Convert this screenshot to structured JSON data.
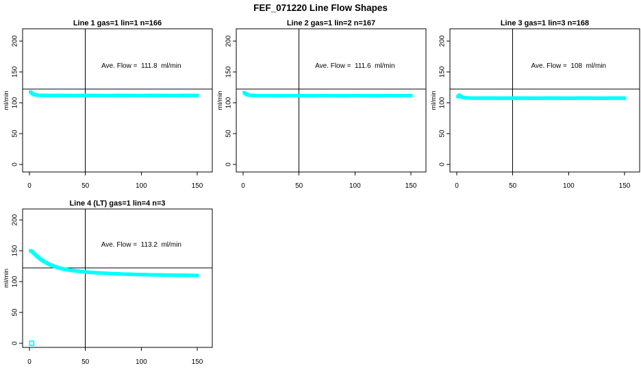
{
  "page": {
    "title": "FEF_071220  Line Flow Shapes",
    "background": "#ffffff"
  },
  "style": {
    "marker_color": "#00ffff",
    "axis_color": "#000000",
    "text_color": "#000000"
  },
  "chart_data": [
    {
      "type": "scatter",
      "title": "Line 1 gas=1 lin=1 n=166",
      "annotation": "Ave. Flow =  111.8  ml/min",
      "ave_flow_ml_min": 111.8,
      "n": 166,
      "xlabel": "",
      "ylabel": "ml/min",
      "xlim": [
        0,
        150
      ],
      "ylim": [
        0,
        200
      ],
      "x_ticks": [
        0,
        50,
        100,
        150
      ],
      "y_ticks": [
        0,
        50,
        100,
        150,
        200
      ],
      "grid": false,
      "vline_x": 50,
      "hline_y": 122,
      "annotation_pos": {
        "x": 100,
        "y": 160
      },
      "profile_points": [
        [
          1,
          117.5
        ],
        [
          2,
          116
        ],
        [
          3,
          114.6
        ],
        [
          4,
          113.6
        ],
        [
          5,
          113
        ],
        [
          6,
          112.6
        ],
        [
          8,
          112.2
        ],
        [
          10,
          112
        ],
        [
          14,
          111.9
        ],
        [
          20,
          111.8
        ],
        [
          30,
          111.9
        ],
        [
          40,
          111.7
        ],
        [
          50,
          111.9
        ],
        [
          60,
          111.8
        ],
        [
          70,
          111.7
        ],
        [
          80,
          111.9
        ],
        [
          90,
          111.8
        ],
        [
          100,
          111.7
        ],
        [
          110,
          111.9
        ],
        [
          120,
          111.8
        ],
        [
          130,
          111.7
        ],
        [
          140,
          111.9
        ],
        [
          150,
          111.8
        ]
      ],
      "extra_points": []
    },
    {
      "type": "scatter",
      "title": "Line 2 gas=1 lin=2 n=167",
      "annotation": "Ave. Flow =  111.6  ml/min",
      "ave_flow_ml_min": 111.6,
      "n": 167,
      "xlabel": "",
      "ylabel": "ml/min",
      "xlim": [
        0,
        150
      ],
      "ylim": [
        0,
        200
      ],
      "x_ticks": [
        0,
        50,
        100,
        150
      ],
      "y_ticks": [
        0,
        50,
        100,
        150,
        200
      ],
      "grid": false,
      "vline_x": 50,
      "hline_y": 122,
      "annotation_pos": {
        "x": 100,
        "y": 160
      },
      "profile_points": [
        [
          1,
          116.5
        ],
        [
          2,
          115.2
        ],
        [
          3,
          114
        ],
        [
          4,
          113.2
        ],
        [
          5,
          112.6
        ],
        [
          6,
          112.2
        ],
        [
          8,
          111.9
        ],
        [
          10,
          111.7
        ],
        [
          14,
          111.6
        ],
        [
          20,
          111.7
        ],
        [
          30,
          111.5
        ],
        [
          40,
          111.7
        ],
        [
          50,
          111.6
        ],
        [
          60,
          111.5
        ],
        [
          70,
          111.7
        ],
        [
          80,
          111.6
        ],
        [
          90,
          111.5
        ],
        [
          100,
          111.7
        ],
        [
          110,
          111.6
        ],
        [
          120,
          111.5
        ],
        [
          130,
          111.7
        ],
        [
          140,
          111.6
        ],
        [
          150,
          111.6
        ]
      ],
      "extra_points": []
    },
    {
      "type": "scatter",
      "title": "Line 3 gas=1 lin=3 n=168",
      "annotation": "Ave. Flow =  108  ml/min",
      "ave_flow_ml_min": 108,
      "n": 168,
      "xlabel": "",
      "ylabel": "ml/min",
      "xlim": [
        0,
        150
      ],
      "ylim": [
        0,
        200
      ],
      "x_ticks": [
        0,
        50,
        100,
        150
      ],
      "y_ticks": [
        0,
        50,
        100,
        150,
        200
      ],
      "grid": false,
      "vline_x": 50,
      "hline_y": 122,
      "annotation_pos": {
        "x": 100,
        "y": 160
      },
      "profile_points": [
        [
          1,
          110
        ],
        [
          2,
          112.3
        ],
        [
          3,
          111.2
        ],
        [
          4,
          109.8
        ],
        [
          5,
          108.9
        ],
        [
          6,
          108.4
        ],
        [
          8,
          108
        ],
        [
          10,
          107.8
        ],
        [
          14,
          107.6
        ],
        [
          20,
          107.5
        ],
        [
          30,
          107.6
        ],
        [
          40,
          107.4
        ],
        [
          50,
          107.6
        ],
        [
          60,
          107.5
        ],
        [
          70,
          107.4
        ],
        [
          80,
          107.6
        ],
        [
          90,
          107.5
        ],
        [
          100,
          107.4
        ],
        [
          110,
          107.6
        ],
        [
          120,
          107.5
        ],
        [
          130,
          107.4
        ],
        [
          140,
          107.6
        ],
        [
          150,
          107.5
        ]
      ],
      "extra_points": []
    },
    {
      "type": "scatter",
      "title": "Line 4 (LT) gas=1 lin=4 n=3",
      "annotation": "Ave. Flow =  113.2  ml/min",
      "ave_flow_ml_min": 113.2,
      "n": 3,
      "xlabel": "",
      "ylabel": "ml/min",
      "xlim": [
        0,
        150
      ],
      "ylim": [
        0,
        200
      ],
      "x_ticks": [
        0,
        50,
        100,
        150
      ],
      "y_ticks": [
        0,
        50,
        100,
        150,
        200
      ],
      "grid": false,
      "vline_x": 50,
      "hline_y": 122,
      "annotation_pos": {
        "x": 100,
        "y": 160
      },
      "profile_points": [
        [
          1,
          150
        ],
        [
          2,
          149.2
        ],
        [
          3,
          147.8
        ],
        [
          4,
          146
        ],
        [
          5,
          144.2
        ],
        [
          6,
          142.4
        ],
        [
          7,
          140.8
        ],
        [
          8,
          139.2
        ],
        [
          9,
          137.8
        ],
        [
          10,
          136.4
        ],
        [
          12,
          133.8
        ],
        [
          14,
          131.6
        ],
        [
          16,
          129.6
        ],
        [
          18,
          127.8
        ],
        [
          20,
          126.2
        ],
        [
          22,
          124.8
        ],
        [
          25,
          123
        ],
        [
          28,
          121.5
        ],
        [
          31,
          120.3
        ],
        [
          35,
          119
        ],
        [
          40,
          117.6
        ],
        [
          45,
          116.5
        ],
        [
          50,
          115.6
        ],
        [
          55,
          114.9
        ],
        [
          60,
          114.3
        ],
        [
          65,
          113.8
        ],
        [
          70,
          113.3
        ],
        [
          75,
          112.9
        ],
        [
          80,
          112.5
        ],
        [
          85,
          112.2
        ],
        [
          90,
          111.9
        ],
        [
          95,
          111.6
        ],
        [
          100,
          111.4
        ],
        [
          110,
          111
        ],
        [
          120,
          110.7
        ],
        [
          130,
          110.4
        ],
        [
          140,
          110.2
        ],
        [
          150,
          110
        ]
      ],
      "extra_points": [
        [
          2,
          0
        ]
      ]
    }
  ]
}
